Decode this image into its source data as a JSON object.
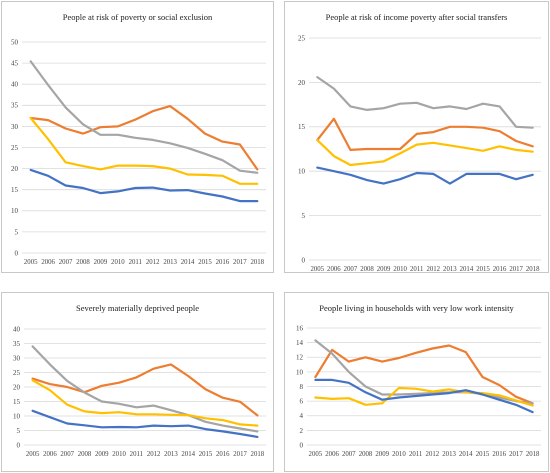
{
  "colors": {
    "series_orange": "#ed7d31",
    "series_gray": "#a5a5a5",
    "series_yellow": "#ffc000",
    "series_blue": "#4472c4",
    "grid": "#d9d9d9"
  },
  "chart_data": [
    {
      "type": "line",
      "title": "People at risk of poverty or social exclusion",
      "x": [
        "2005",
        "2006",
        "2007",
        "2008",
        "2009",
        "2010",
        "2011",
        "2012",
        "2013",
        "2014",
        "2015",
        "2016",
        "2017",
        "2018"
      ],
      "ylim": [
        0,
        50
      ],
      "yticks": [
        "0",
        "5",
        "10",
        "15",
        "20",
        "25",
        "30",
        "35",
        "40",
        "45",
        "50"
      ],
      "grid": true,
      "series": [
        {
          "color": "#ed7d31",
          "values": [
            32,
            31.5,
            29.5,
            28.3,
            29.8,
            30,
            31.6,
            33.6,
            34.8,
            31.8,
            28.3,
            26.4,
            25.7,
            19.8
          ]
        },
        {
          "color": "#a5a5a5",
          "values": [
            45.4,
            39.8,
            34.5,
            30.5,
            28,
            28,
            27.3,
            26.8,
            26,
            24.9,
            23.5,
            22,
            19.5,
            19
          ]
        },
        {
          "color": "#ffc000",
          "values": [
            32,
            27,
            21.5,
            20.6,
            19.8,
            20.7,
            20.7,
            20.6,
            20,
            18.6,
            18.5,
            18.3,
            16.4,
            16.4
          ]
        },
        {
          "color": "#4472c4",
          "values": [
            19.7,
            18.3,
            16,
            15.4,
            14.2,
            14.6,
            15.4,
            15.5,
            14.8,
            14.9,
            14.1,
            13.4,
            12.3,
            12.3
          ]
        }
      ]
    },
    {
      "type": "line",
      "title": "People at risk of income poverty after social transfers",
      "x": [
        "2005",
        "2006",
        "2007",
        "2008",
        "2009",
        "2010",
        "2011",
        "2012",
        "2013",
        "2014",
        "2015",
        "2016",
        "2017",
        "2018"
      ],
      "ylim": [
        0,
        25
      ],
      "yticks": [
        "0",
        "5",
        "10",
        "15",
        "20",
        "25"
      ],
      "grid": true,
      "series": [
        {
          "color": "#ed7d31",
          "values": [
            13.5,
            15.9,
            12.4,
            12.5,
            12.5,
            12.5,
            14.2,
            14.4,
            15,
            15,
            14.9,
            14.5,
            13.4,
            12.8
          ]
        },
        {
          "color": "#a5a5a5",
          "values": [
            20.6,
            19.3,
            17.3,
            16.9,
            17.1,
            17.6,
            17.7,
            17.1,
            17.3,
            17,
            17.6,
            17.3,
            15,
            14.9
          ]
        },
        {
          "color": "#ffc000",
          "values": [
            13.5,
            11.7,
            10.7,
            10.9,
            11.1,
            12,
            13,
            13.2,
            12.9,
            12.6,
            12.3,
            12.8,
            12.4,
            12.2
          ]
        },
        {
          "color": "#4472c4",
          "values": [
            10.4,
            10,
            9.6,
            9,
            8.6,
            9.1,
            9.8,
            9.7,
            8.6,
            9.7,
            9.7,
            9.7,
            9.1,
            9.6
          ]
        }
      ]
    },
    {
      "type": "line",
      "title": "Severely materially deprived people",
      "x": [
        "2005",
        "2006",
        "2007",
        "2008",
        "2009",
        "2010",
        "2011",
        "2012",
        "2013",
        "2014",
        "2015",
        "2016",
        "2017",
        "2018"
      ],
      "ylim": [
        0,
        40
      ],
      "yticks": [
        "0",
        "5",
        "10",
        "15",
        "20",
        "25",
        "30",
        "35",
        "40"
      ],
      "grid": true,
      "series": [
        {
          "color": "#ed7d31",
          "values": [
            22.9,
            21,
            20,
            18.2,
            20.4,
            21.5,
            23.3,
            26.3,
            27.8,
            23.8,
            19.2,
            16.3,
            14.9,
            10.2
          ]
        },
        {
          "color": "#a5a5a5",
          "values": [
            34,
            27.8,
            22.1,
            18.1,
            15,
            14.2,
            13,
            13.6,
            12,
            10.3,
            8,
            6.7,
            5.7,
            4.7
          ]
        },
        {
          "color": "#ffc000",
          "values": [
            22.3,
            18.9,
            13.9,
            11.6,
            11,
            11.3,
            10.6,
            10.6,
            10.4,
            10.3,
            9.2,
            8.6,
            7.1,
            6.7
          ]
        },
        {
          "color": "#4472c4",
          "values": [
            11.8,
            9.6,
            7.4,
            6.8,
            6.1,
            6.2,
            6.1,
            6.7,
            6.5,
            6.7,
            5.5,
            4.7,
            3.8,
            2.8
          ]
        }
      ]
    },
    {
      "type": "line",
      "title": "People living in households with very low work intensity",
      "x": [
        "2005",
        "2006",
        "2007",
        "2008",
        "2009",
        "2010",
        "2011",
        "2012",
        "2013",
        "2014",
        "2015",
        "2016",
        "2017",
        "2018"
      ],
      "ylim": [
        0,
        16
      ],
      "yticks": [
        "0",
        "2",
        "4",
        "6",
        "8",
        "10",
        "12",
        "14",
        "16"
      ],
      "grid": true,
      "series": [
        {
          "color": "#ed7d31",
          "values": [
            9.3,
            13,
            11.4,
            12,
            11.4,
            11.9,
            12.6,
            13.2,
            13.6,
            12.7,
            9.3,
            8.2,
            6.6,
            5.7
          ]
        },
        {
          "color": "#a5a5a5",
          "values": [
            14.3,
            12.5,
            10,
            8,
            6.9,
            6.9,
            7,
            7.1,
            7.2,
            7.2,
            7,
            6.5,
            6,
            5.7
          ]
        },
        {
          "color": "#ffc000",
          "values": [
            6.5,
            6.3,
            6.4,
            5.5,
            5.7,
            7.8,
            7.7,
            7.3,
            7.6,
            7.2,
            7.1,
            6.8,
            6.1,
            5.4
          ]
        },
        {
          "color": "#4472c4",
          "values": [
            8.9,
            8.9,
            8.5,
            7.2,
            6.2,
            6.5,
            6.7,
            6.9,
            7.1,
            7.5,
            6.9,
            6.2,
            5.5,
            4.5
          ]
        }
      ]
    }
  ]
}
